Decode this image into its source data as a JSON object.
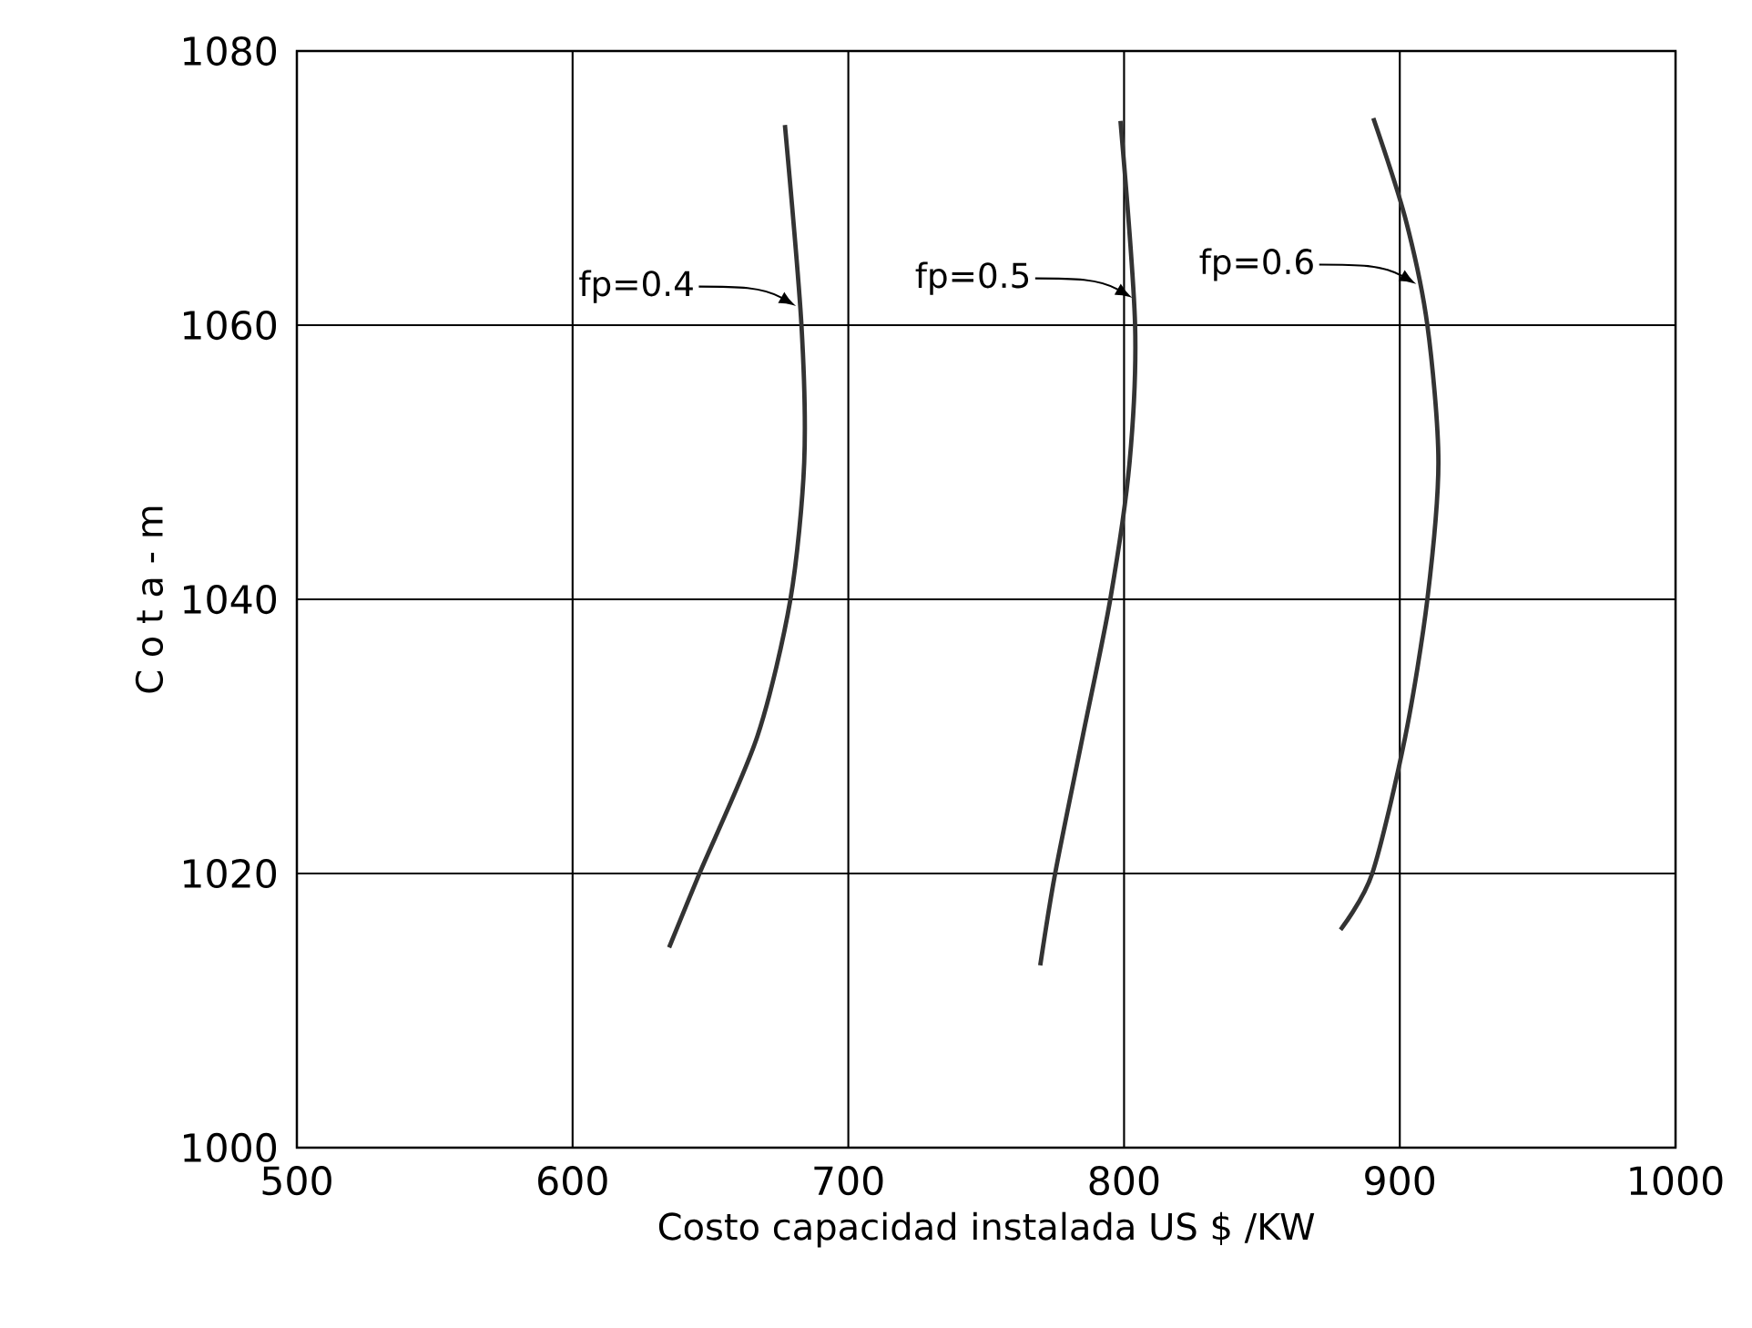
{
  "chart_data": {
    "type": "line",
    "xlabel": "Costo capacidad instalada US $ /KW",
    "ylabel": "C o t a - m",
    "xlim": [
      500,
      1000
    ],
    "ylim": [
      1000,
      1080
    ],
    "xticks": [
      500,
      600,
      700,
      800,
      900,
      1000
    ],
    "yticks": [
      1000,
      1020,
      1040,
      1060,
      1080
    ],
    "grid": true,
    "marker": "none",
    "line_style": "solid",
    "series": [
      {
        "color": "#333333",
        "x": [
          635,
          646,
          667,
          679,
          684,
          683,
          677
        ],
        "values": [
          1014.6,
          1020,
          1030,
          1040,
          1050,
          1060,
          1074.6
        ]
      },
      {
        "color": "#333333",
        "x": [
          769.6,
          775,
          785,
          795,
          802,
          804,
          798.7
        ],
        "values": [
          1013.3,
          1020,
          1030,
          1040,
          1050,
          1060,
          1074.9
        ]
      },
      {
        "color": "#333333",
        "x": [
          878.5,
          890,
          902,
          910,
          914,
          910,
          902,
          890.4
        ],
        "values": [
          1015.9,
          1020,
          1030,
          1040,
          1050,
          1060,
          1067.8,
          1075.1
        ]
      }
    ],
    "annotations": [
      {
        "text": "fp=0.4",
        "x": 681,
        "y": 1061.4
      },
      {
        "text": "fp=0.5",
        "x": 803,
        "y": 1062
      },
      {
        "text": "fp=0.6",
        "x": 906,
        "y": 1063
      }
    ]
  }
}
